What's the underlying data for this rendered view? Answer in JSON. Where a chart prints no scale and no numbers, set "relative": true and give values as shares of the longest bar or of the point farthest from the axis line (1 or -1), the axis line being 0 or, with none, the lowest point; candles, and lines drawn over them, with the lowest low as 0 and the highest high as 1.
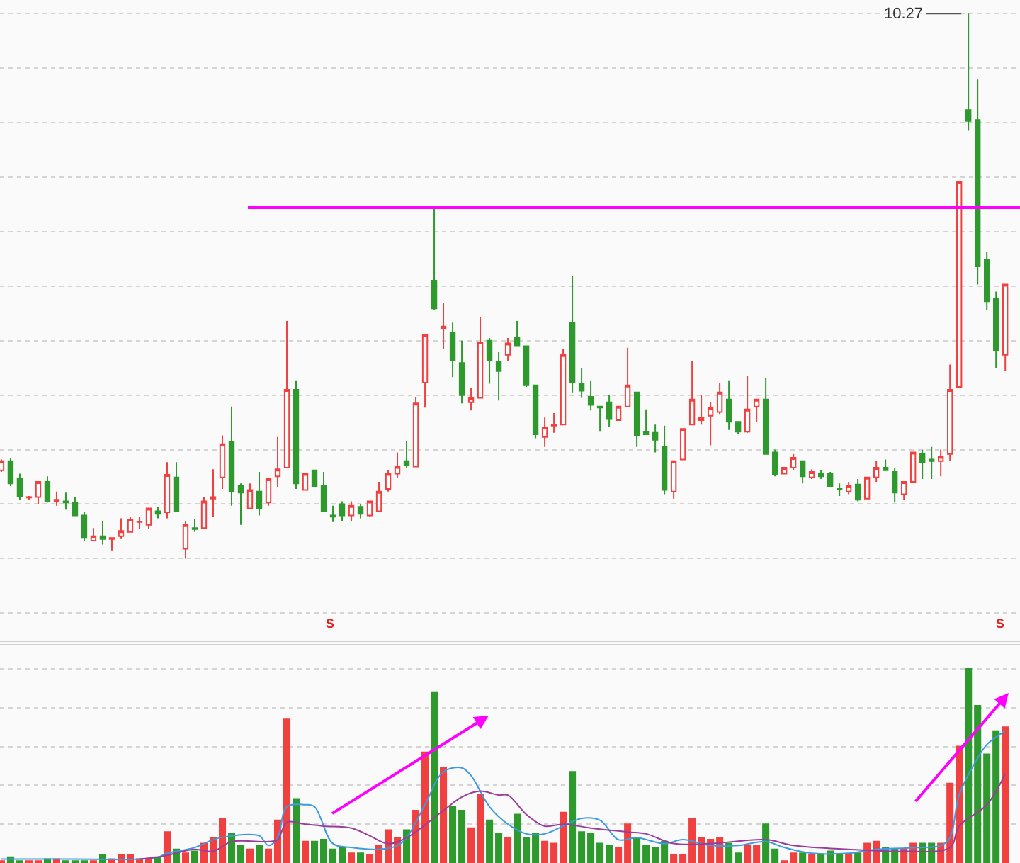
{
  "chart_data": [
    {
      "type": "candlestick",
      "relative": true,
      "grid": "y",
      "tick_labels": false,
      "categories": [
        null,
        null,
        null,
        null,
        null,
        null,
        null,
        null,
        null,
        null,
        null,
        null,
        null,
        null,
        null,
        null,
        null,
        null,
        null,
        null,
        null,
        null,
        null,
        null,
        null,
        null,
        null,
        null,
        null,
        null,
        null,
        null,
        null,
        null,
        null,
        null,
        null,
        null,
        null,
        null,
        null,
        null,
        null,
        null,
        null,
        null,
        null,
        null,
        null,
        null,
        null,
        null,
        null,
        null,
        null,
        null,
        null,
        null,
        null,
        null,
        null,
        null,
        null,
        null,
        null,
        null,
        null,
        null,
        null,
        null,
        null,
        null,
        null,
        null,
        null,
        null,
        null,
        null,
        null,
        null,
        null,
        null,
        null,
        null,
        null,
        null,
        null,
        null,
        null,
        null,
        null,
        null,
        null,
        null,
        null,
        null,
        null,
        null,
        null,
        null,
        null,
        null,
        null,
        null,
        null,
        null,
        null,
        null,
        null,
        null
      ],
      "ohlc": [
        [
          0.162,
          0.182,
          0.159,
          0.179
        ],
        [
          0.179,
          0.185,
          0.133,
          0.138
        ],
        [
          0.146,
          0.156,
          0.108,
          0.115
        ],
        [
          0.112,
          0.115,
          0.108,
          0.113
        ],
        [
          0.113,
          0.141,
          0.1,
          0.141
        ],
        [
          0.141,
          0.151,
          0.103,
          0.105
        ],
        [
          0.105,
          0.123,
          0.097,
          0.108
        ],
        [
          0.105,
          0.121,
          0.09,
          0.103
        ],
        [
          0.103,
          0.113,
          0.079,
          0.079
        ],
        [
          0.079,
          0.085,
          0.033,
          0.038
        ],
        [
          0.033,
          0.056,
          0.033,
          0.041
        ],
        [
          0.041,
          0.069,
          0.026,
          0.036
        ],
        [
          0.036,
          0.038,
          0.015,
          0.038
        ],
        [
          0.041,
          0.074,
          0.036,
          0.051
        ],
        [
          0.049,
          0.077,
          0.049,
          0.072
        ],
        [
          0.067,
          0.077,
          0.054,
          0.068
        ],
        [
          0.062,
          0.092,
          0.054,
          0.092
        ],
        [
          0.087,
          0.095,
          0.074,
          0.082
        ],
        [
          0.085,
          0.177,
          0.074,
          0.154
        ],
        [
          0.149,
          0.177,
          0.087,
          0.087
        ],
        [
          0.018,
          0.069,
          0,
          0.062
        ],
        [
          0.056,
          0.072,
          0.049,
          0.054
        ],
        [
          0.056,
          0.113,
          0.056,
          0.105
        ],
        [
          0.11,
          0.164,
          0.077,
          0.113
        ],
        [
          0.149,
          0.226,
          0.128,
          0.21
        ],
        [
          0.215,
          0.279,
          0.097,
          0.123
        ],
        [
          0.133,
          0.138,
          0.062,
          0.121
        ],
        [
          0.092,
          0.138,
          0.092,
          0.126
        ],
        [
          0.123,
          0.159,
          0.079,
          0.092
        ],
        [
          0.103,
          0.146,
          0.097,
          0.146
        ],
        [
          0.151,
          0.223,
          0.131,
          0.164
        ],
        [
          0.167,
          0.436,
          0.167,
          0.31
        ],
        [
          0.31,
          0.326,
          0.128,
          0.138
        ],
        [
          0.126,
          0.156,
          0.126,
          0.156
        ],
        [
          0.162,
          0.162,
          0.133,
          0.133
        ],
        [
          0.133,
          0.159,
          0.087,
          0.087
        ],
        [
          0.079,
          0.097,
          0.067,
          0.077
        ],
        [
          0.1,
          0.105,
          0.069,
          0.079
        ],
        [
          0.079,
          0.105,
          0.069,
          0.097
        ],
        [
          0.095,
          0.1,
          0.074,
          0.082
        ],
        [
          0.079,
          0.105,
          0.077,
          0.105
        ],
        [
          0.087,
          0.141,
          0.085,
          0.123
        ],
        [
          0.128,
          0.162,
          0.123,
          0.156
        ],
        [
          0.156,
          0.195,
          0.149,
          0.169
        ],
        [
          0.179,
          0.215,
          0.167,
          0.172
        ],
        [
          0.169,
          0.297,
          0.169,
          0.285
        ],
        [
          0.323,
          0.41,
          0.277,
          0.41
        ],
        [
          0.51,
          0.644,
          0.456,
          0.459
        ],
        [
          0.423,
          0.469,
          0.385,
          0.426
        ],
        [
          0.415,
          0.433,
          0.333,
          0.364
        ],
        [
          0.359,
          0.4,
          0.285,
          0.3
        ],
        [
          0.287,
          0.313,
          0.272,
          0.295
        ],
        [
          0.295,
          0.444,
          0.295,
          0.397
        ],
        [
          0.4,
          0.405,
          0.321,
          0.364
        ],
        [
          0.362,
          0.379,
          0.29,
          0.344
        ],
        [
          0.374,
          0.405,
          0.362,
          0.395
        ],
        [
          0.405,
          0.436,
          0.39,
          0.39
        ],
        [
          0.39,
          0.39,
          0.315,
          0.318
        ],
        [
          0.318,
          0.318,
          0.221,
          0.228
        ],
        [
          0.223,
          0.259,
          0.205,
          0.241
        ],
        [
          0.244,
          0.267,
          0.231,
          0.245
        ],
        [
          0.246,
          0.385,
          0.246,
          0.374
        ],
        [
          0.433,
          0.518,
          0.305,
          0.323
        ],
        [
          0.321,
          0.349,
          0.295,
          0.308
        ],
        [
          0.297,
          0.326,
          0.272,
          0.282
        ],
        [
          0.279,
          0.279,
          0.233,
          0.277
        ],
        [
          0.287,
          0.3,
          0.241,
          0.256
        ],
        [
          0.254,
          0.279,
          0.254,
          0.279
        ],
        [
          0.279,
          0.387,
          0.279,
          0.318
        ],
        [
          0.305,
          0.305,
          0.205,
          0.226
        ],
        [
          0.233,
          0.274,
          0.228,
          0.228
        ],
        [
          0.231,
          0.246,
          0.195,
          0.218
        ],
        [
          0.205,
          0.244,
          0.118,
          0.126
        ],
        [
          0.123,
          0.179,
          0.11,
          0.179
        ],
        [
          0.182,
          0.238,
          0.182,
          0.238
        ],
        [
          0.246,
          0.362,
          0.246,
          0.292
        ],
        [
          0.254,
          0.3,
          0.246,
          0.259
        ],
        [
          0.262,
          0.287,
          0.208,
          0.277
        ],
        [
          0.269,
          0.323,
          0.264,
          0.305
        ],
        [
          0.292,
          0.326,
          0.236,
          0.251
        ],
        [
          0.251,
          0.251,
          0.228,
          0.233
        ],
        [
          0.233,
          0.336,
          0.231,
          0.274
        ],
        [
          0.279,
          0.292,
          0.251,
          0.292
        ],
        [
          0.292,
          0.331,
          0.192,
          0.192
        ],
        [
          0.195,
          0.2,
          0.151,
          0.154
        ],
        [
          0.156,
          0.167,
          0.156,
          0.167
        ],
        [
          0.167,
          0.192,
          0.162,
          0.185
        ],
        [
          0.179,
          0.179,
          0.138,
          0.151
        ],
        [
          0.149,
          0.164,
          0.146,
          0.159
        ],
        [
          0.156,
          0.162,
          0.146,
          0.151
        ],
        [
          0.156,
          0.159,
          0.131,
          0.133
        ],
        [
          0.128,
          0.138,
          0.115,
          0.127
        ],
        [
          0.123,
          0.141,
          0.118,
          0.133
        ],
        [
          0.136,
          0.146,
          0.105,
          0.108
        ],
        [
          0.11,
          0.149,
          0.11,
          0.149
        ],
        [
          0.149,
          0.179,
          0.141,
          0.167
        ],
        [
          0.167,
          0.182,
          0.162,
          0.162
        ],
        [
          0.159,
          0.167,
          0.103,
          0.121
        ],
        [
          0.118,
          0.141,
          0.108,
          0.141
        ],
        [
          0.141,
          0.195,
          0.141,
          0.195
        ],
        [
          0.192,
          0.2,
          0.146,
          0.177
        ],
        [
          0.182,
          0.205,
          0.146,
          0.179
        ],
        [
          0.179,
          0.2,
          0.151,
          0.187
        ],
        [
          0.192,
          0.356,
          0.179,
          0.31
        ],
        [
          0.315,
          0.692,
          0.315,
          0.692
        ],
        [
          0.823,
          1,
          0.785,
          0.803
        ],
        [
          0.805,
          0.879,
          0.503,
          0.536
        ],
        [
          0.549,
          0.562,
          0.456,
          0.472
        ],
        [
          0.477,
          0.49,
          0.349,
          0.382
        ],
        [
          0.374,
          0.503,
          0.344,
          0.503
        ]
      ],
      "annotations": [
        "10.27",
        "S",
        "S"
      ],
      "ref_lines": [
        {
          "axis": "y",
          "value": 0.644,
          "color": "#ff00ff"
        }
      ]
    },
    {
      "type": "bar",
      "relative": true,
      "grid": "y",
      "tick_labels": false,
      "categories": [
        null,
        null,
        null,
        null,
        null,
        null,
        null,
        null,
        null,
        null,
        null,
        null,
        null,
        null,
        null,
        null,
        null,
        null,
        null,
        null,
        null,
        null,
        null,
        null,
        null,
        null,
        null,
        null,
        null,
        null,
        null,
        null,
        null,
        null,
        null,
        null,
        null,
        null,
        null,
        null,
        null,
        null,
        null,
        null,
        null,
        null,
        null,
        null,
        null,
        null,
        null,
        null,
        null,
        null,
        null,
        null,
        null,
        null,
        null,
        null,
        null,
        null,
        null,
        null,
        null,
        null,
        null,
        null,
        null,
        null,
        null,
        null,
        null,
        null,
        null,
        null,
        null,
        null,
        null,
        null,
        null,
        null,
        null,
        null,
        null,
        null,
        null,
        null,
        null,
        null,
        null,
        null,
        null,
        null,
        null,
        null,
        null,
        null,
        null,
        null,
        null,
        null,
        null,
        null,
        null,
        null,
        null,
        null,
        null,
        null
      ],
      "series": [
        {
          "type": "bar",
          "values": [
            0.01,
            0.03,
            0.01,
            0.01,
            0.01,
            0.02,
            0.02,
            0.01,
            0.01,
            0.01,
            0.01,
            0.04,
            0.02,
            0.04,
            0.04,
            0.02,
            0.02,
            0.03,
            0.16,
            0.07,
            0.05,
            0.06,
            0.1,
            0.13,
            0.23,
            0.15,
            0.09,
            0.07,
            0.09,
            0.07,
            0.22,
            0.74,
            0.33,
            0.11,
            0.11,
            0.12,
            0.07,
            0.08,
            0.05,
            0.05,
            0.04,
            0.09,
            0.17,
            0.13,
            0.17,
            0.27,
            0.57,
            0.88,
            0.49,
            0.29,
            0.27,
            0.18,
            0.35,
            0.22,
            0.15,
            0.13,
            0.25,
            0.13,
            0.15,
            0.11,
            0.1,
            0.26,
            0.47,
            0.16,
            0.15,
            0.1,
            0.09,
            0.08,
            0.2,
            0.13,
            0.09,
            0.08,
            0.11,
            0.04,
            0.04,
            0.23,
            0.13,
            0.12,
            0.13,
            0.1,
            0.05,
            0.09,
            0.09,
            0.2,
            0.07,
            0.01,
            0.05,
            0.05,
            0.04,
            0.04,
            0.06,
            0.04,
            0.04,
            0.05,
            0.1,
            0.11,
            0.08,
            0.07,
            0.07,
            0.1,
            0.1,
            0.1,
            0.1,
            0.41,
            0.6,
            1,
            0.81,
            0.56,
            0.68,
            0.7
          ],
          "colors": [
            "#f04040",
            "#2e9a2e",
            "#2e9a2e",
            "#f04040",
            "#f04040",
            "#2e9a2e",
            "#f04040",
            "#2e9a2e",
            "#2e9a2e",
            "#2e9a2e",
            "#f04040",
            "#2e9a2e",
            "#f04040",
            "#f04040",
            "#f04040",
            "#f04040",
            "#f04040",
            "#2e9a2e",
            "#f04040",
            "#2e9a2e",
            "#f04040",
            "#2e9a2e",
            "#f04040",
            "#f04040",
            "#f04040",
            "#2e9a2e",
            "#2e9a2e",
            "#f04040",
            "#2e9a2e",
            "#f04040",
            "#f04040",
            "#f04040",
            "#2e9a2e",
            "#f04040",
            "#2e9a2e",
            "#2e9a2e",
            "#2e9a2e",
            "#2e9a2e",
            "#f04040",
            "#2e9a2e",
            "#f04040",
            "#f04040",
            "#f04040",
            "#f04040",
            "#2e9a2e",
            "#f04040",
            "#f04040",
            "#2e9a2e",
            "#f04040",
            "#2e9a2e",
            "#2e9a2e",
            "#f04040",
            "#f04040",
            "#2e9a2e",
            "#2e9a2e",
            "#f04040",
            "#2e9a2e",
            "#2e9a2e",
            "#2e9a2e",
            "#f04040",
            "#f04040",
            "#f04040",
            "#2e9a2e",
            "#2e9a2e",
            "#2e9a2e",
            "#2e9a2e",
            "#2e9a2e",
            "#f04040",
            "#f04040",
            "#2e9a2e",
            "#2e9a2e",
            "#2e9a2e",
            "#2e9a2e",
            "#f04040",
            "#f04040",
            "#f04040",
            "#f04040",
            "#f04040",
            "#f04040",
            "#2e9a2e",
            "#2e9a2e",
            "#f04040",
            "#f04040",
            "#2e9a2e",
            "#2e9a2e",
            "#f04040",
            "#f04040",
            "#2e9a2e",
            "#f04040",
            "#2e9a2e",
            "#2e9a2e",
            "#2e9a2e",
            "#f04040",
            "#2e9a2e",
            "#f04040",
            "#f04040",
            "#2e9a2e",
            "#2e9a2e",
            "#f04040",
            "#f04040",
            "#2e9a2e",
            "#2e9a2e",
            "#f04040",
            "#f04040",
            "#f04040",
            "#2e9a2e",
            "#2e9a2e",
            "#2e9a2e",
            "#2e9a2e",
            "#f04040"
          ]
        },
        {
          "type": "line",
          "color": "#3d9be0",
          "values": [
            0.02,
            null,
            null,
            null,
            null,
            null,
            null,
            null,
            0.02,
            null,
            null,
            null,
            null,
            null,
            null,
            0.02,
            null,
            0.03,
            0.05,
            null,
            null,
            0.08,
            null,
            0.12,
            null,
            0.14,
            null,
            null,
            0.14,
            0.09,
            0.13,
            0.29,
            null,
            0.3,
            0.29,
            null,
            0.1,
            null,
            0.08,
            null,
            null,
            0.07,
            null,
            0.09,
            0.13,
            null,
            0.3,
            null,
            0.47,
            null,
            0.49,
            0.45,
            null,
            0.29,
            null,
            0.2,
            null,
            0.15,
            null,
            0.15,
            null,
            0.19,
            null,
            0.23,
            null,
            0.22,
            null,
            0.12,
            null,
            0.13,
            null,
            null,
            0.1,
            null,
            0.12,
            null,
            null,
            0.09,
            null,
            null,
            0.09,
            null,
            null,
            0.11,
            null,
            0.08,
            null,
            null,
            0.05,
            null,
            null,
            null,
            0.05,
            null,
            null,
            0.07,
            null,
            null,
            null,
            null,
            0.08,
            null,
            0.09,
            0.13,
            0.35,
            null,
            0.54,
            0.61,
            null,
            0.68
          ]
        },
        {
          "type": "line",
          "color": "#9a3d9a",
          "values": [
            null,
            null,
            null,
            null,
            null,
            null,
            null,
            null,
            null,
            null,
            null,
            null,
            null,
            null,
            null,
            0.02,
            null,
            0.03,
            0.04,
            null,
            null,
            0.07,
            null,
            0.06,
            null,
            0.11,
            null,
            null,
            null,
            0.11,
            0.12,
            0.21,
            null,
            0.2,
            null,
            0.19,
            null,
            null,
            0.18,
            null,
            0.14,
            null,
            0.1,
            null,
            0.13,
            null,
            null,
            null,
            0.27,
            null,
            0.34,
            null,
            0.37,
            null,
            0.35,
            0.35,
            null,
            0.25,
            null,
            0.19,
            null,
            0.2,
            null,
            null,
            0.18,
            null,
            null,
            null,
            0.16,
            null,
            0.15,
            null,
            null,
            0.1,
            null,
            null,
            null,
            0.1,
            null,
            null,
            null,
            null,
            null,
            0.12,
            null,
            null,
            0.09,
            null,
            null,
            null,
            null,
            null,
            0.07,
            null,
            null,
            null,
            null,
            null,
            0.06,
            null,
            null,
            null,
            null,
            0.08,
            0.19,
            null,
            null,
            0.3,
            null,
            0.46
          ]
        }
      ]
    }
  ]
}
